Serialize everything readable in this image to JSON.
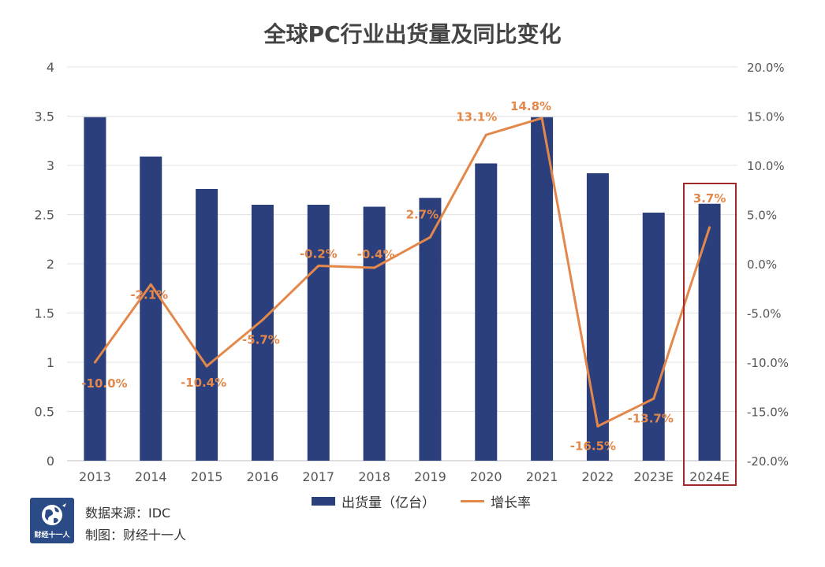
{
  "title": "全球PC行业出货量及同比变化",
  "legend": {
    "bar_label": "出货量（亿台）",
    "line_label": "增长率"
  },
  "source_line": "数据来源：IDC",
  "made_by_line": "制图：财经十一人",
  "logo": {
    "text": "财经十一人",
    "icon": "globe-icon"
  },
  "colors": {
    "bar": "#2a3f7c",
    "line": "#e3884a",
    "highlight": "#a02a2a",
    "label": "#e3884a"
  },
  "chart_data": {
    "type": "bar",
    "title": "全球PC行业出货量及同比变化",
    "categories": [
      "2013",
      "2014",
      "2015",
      "2016",
      "2017",
      "2018",
      "2019",
      "2020",
      "2021",
      "2022",
      "2023E",
      "2024E"
    ],
    "series": [
      {
        "name": "出货量（亿台）",
        "type": "bar",
        "axis": "left",
        "values": [
          3.49,
          3.09,
          2.76,
          2.6,
          2.6,
          2.58,
          2.67,
          3.02,
          3.49,
          2.92,
          2.52,
          2.61
        ]
      },
      {
        "name": "增长率",
        "type": "line",
        "axis": "right",
        "values": [
          -10.0,
          -2.1,
          -10.4,
          -5.7,
          -0.2,
          -0.4,
          2.7,
          13.1,
          14.8,
          -16.5,
          -13.7,
          3.7
        ],
        "labels": [
          "-10.0%",
          "-2.1%",
          "-10.4%",
          "-5.7%",
          "-0.2%",
          "-0.4%",
          "2.7%",
          "13.1%",
          "14.8%",
          "-16.5%",
          "-13.7%",
          "3.7%"
        ]
      }
    ],
    "y_left": {
      "ylim": [
        0,
        4
      ],
      "ticks": [
        0,
        0.5,
        1,
        1.5,
        2,
        2.5,
        3,
        3.5,
        4
      ],
      "tick_labels": [
        "0",
        "0.5",
        "1",
        "1.5",
        "2",
        "2.5",
        "3",
        "3.5",
        "4"
      ]
    },
    "y_right": {
      "ylim": [
        -20,
        20
      ],
      "ticks": [
        -20,
        -15,
        -10,
        -5,
        0,
        5,
        10,
        15,
        20
      ],
      "tick_labels": [
        "-20.0%",
        "-15.0%",
        "-10.0%",
        "-5.0%",
        "0.0%",
        "5.0%",
        "10.0%",
        "15.0%",
        "20.0%"
      ]
    },
    "grid": true,
    "legend_position": "bottom",
    "highlighted_category": "2024E"
  }
}
